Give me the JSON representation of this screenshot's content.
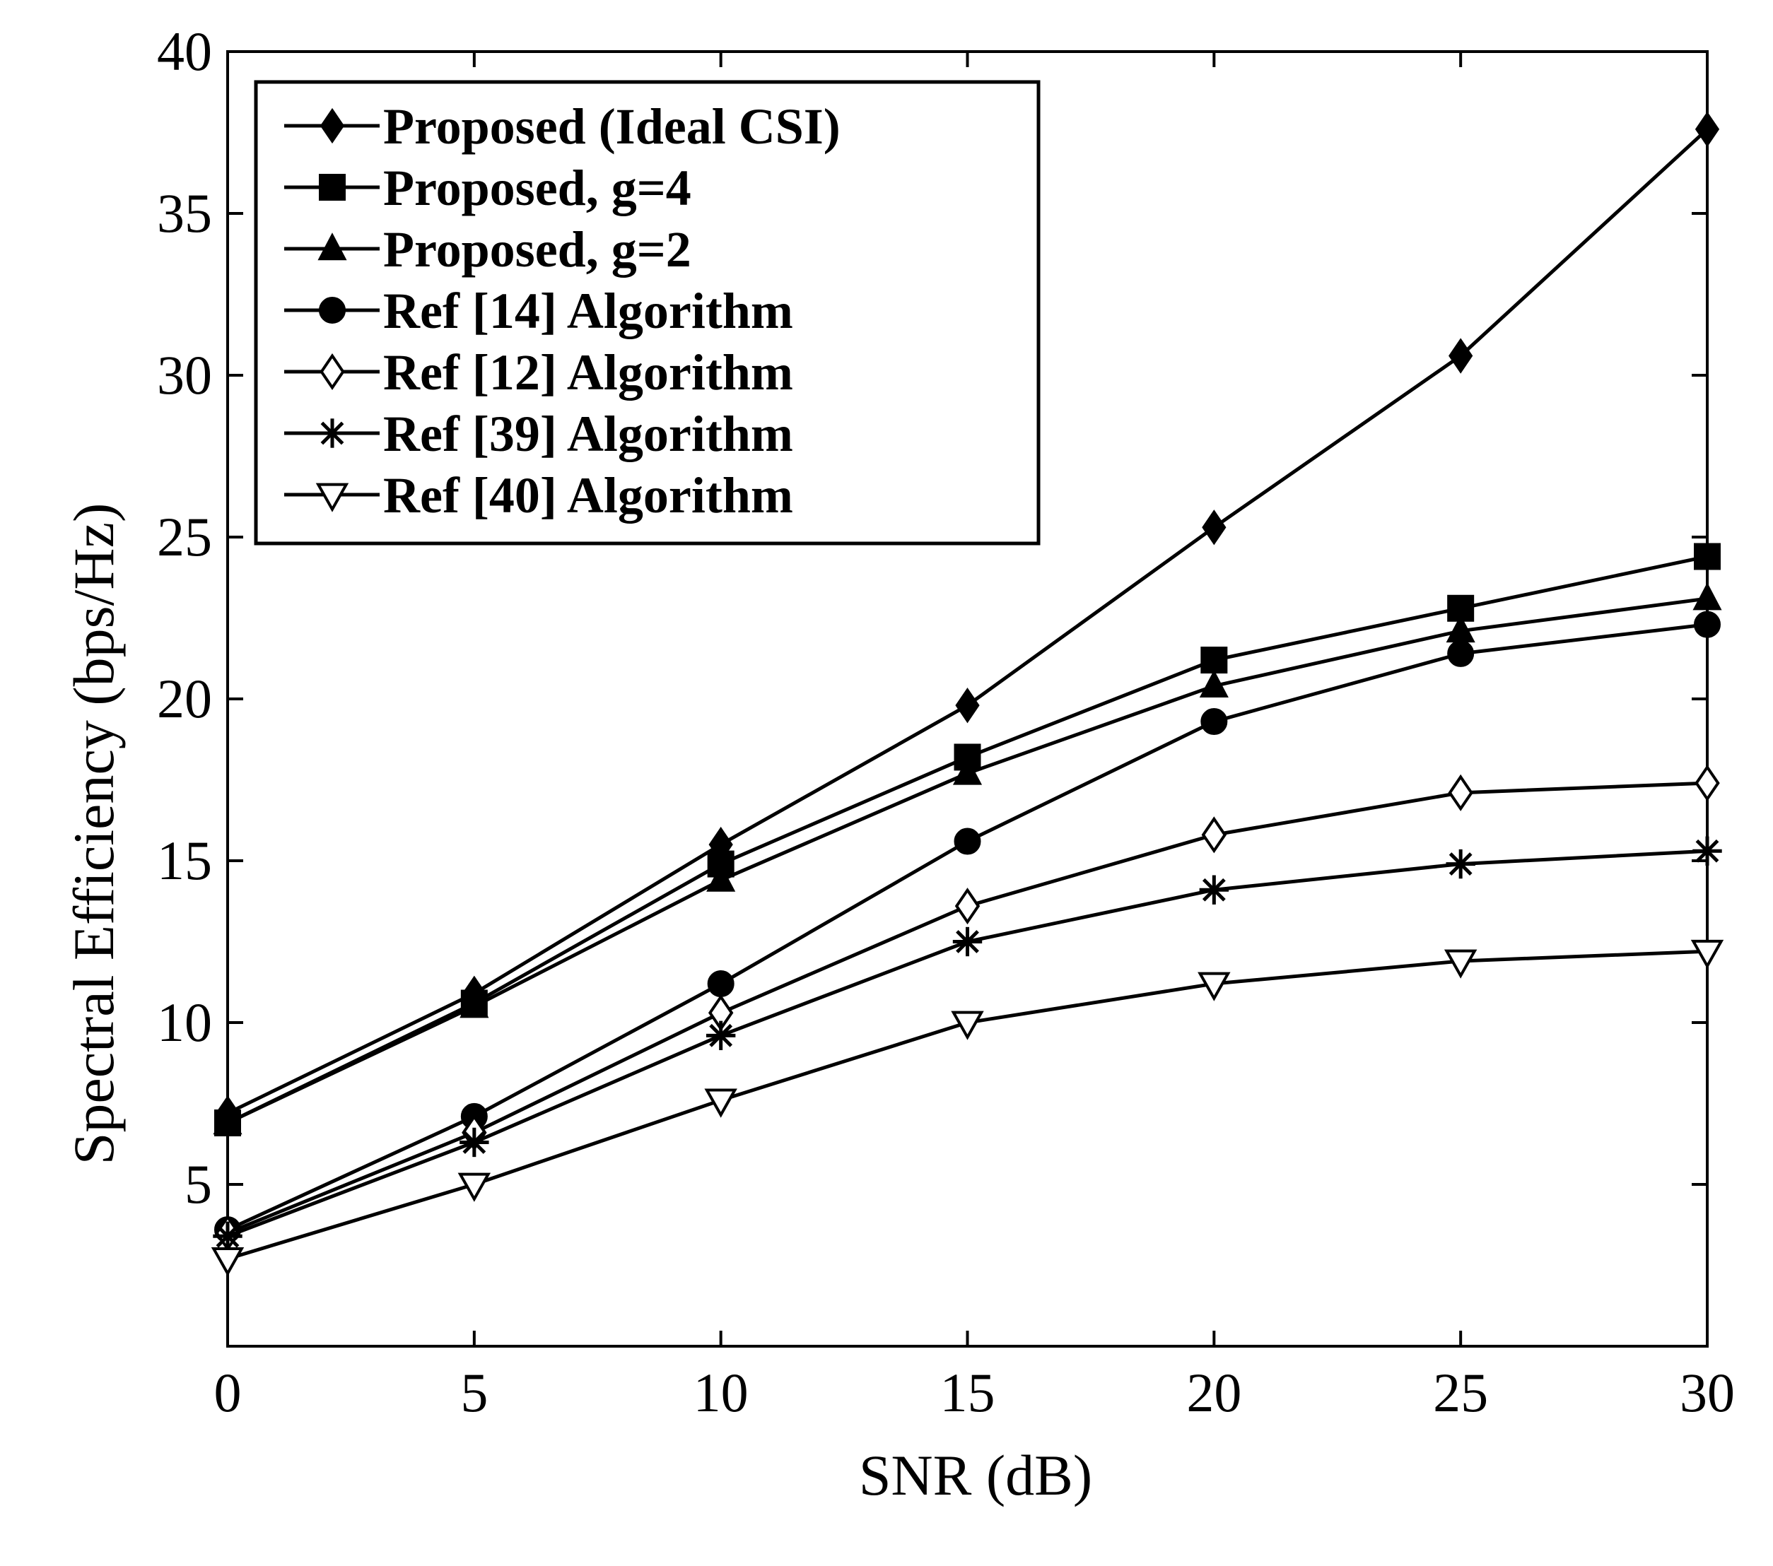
{
  "chart_data": {
    "type": "line",
    "title": "",
    "xlabel": "SNR (dB)",
    "ylabel": "Spectral Efficiency (bps/Hz)",
    "xlim": [
      0,
      30
    ],
    "ylim": [
      0,
      40
    ],
    "x": [
      0,
      5,
      10,
      15,
      20,
      25,
      30
    ],
    "xticks": [
      "0",
      "5",
      "10",
      "15",
      "20",
      "25",
      "30"
    ],
    "yticks": [
      "5",
      "10",
      "15",
      "20",
      "25",
      "30",
      "35",
      "40"
    ],
    "grid": false,
    "legend_position": "top-left",
    "series": [
      {
        "name": "Proposed (Ideal CSI)",
        "marker": "diamond-filled",
        "values": [
          7.2,
          10.9,
          15.5,
          19.8,
          25.3,
          30.6,
          37.6
        ]
      },
      {
        "name": "Proposed, g=4",
        "marker": "square-filled",
        "values": [
          6.9,
          10.6,
          14.9,
          18.2,
          21.2,
          22.8,
          24.4
        ]
      },
      {
        "name": "Proposed, g=2",
        "marker": "triangle-filled",
        "values": [
          6.9,
          10.5,
          14.4,
          17.7,
          20.4,
          22.1,
          23.1
        ]
      },
      {
        "name": "Ref [14] Algorithm",
        "marker": "circle-filled",
        "values": [
          3.6,
          7.1,
          11.2,
          15.6,
          19.3,
          21.4,
          22.3
        ]
      },
      {
        "name": "Ref [12] Algorithm",
        "marker": "diamond-open",
        "values": [
          3.5,
          6.6,
          10.3,
          13.6,
          15.8,
          17.1,
          17.4
        ]
      },
      {
        "name": "Ref [39] Algorithm",
        "marker": "star",
        "values": [
          3.4,
          6.3,
          9.6,
          12.5,
          14.1,
          14.9,
          15.3
        ]
      },
      {
        "name": "Ref [40] Algorithm",
        "marker": "triangle-down-open",
        "values": [
          2.7,
          5.0,
          7.6,
          10.0,
          11.2,
          11.9,
          12.2
        ]
      }
    ]
  }
}
